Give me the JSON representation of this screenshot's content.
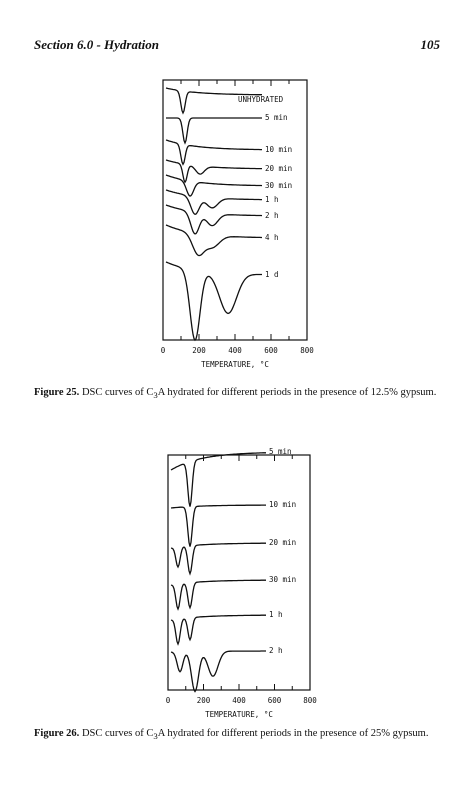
{
  "header": {
    "section": "Section 6.0 - Hydration",
    "page": "105"
  },
  "figures": [
    {
      "curve_labels": [
        "UNHYDRATED",
        "5 min",
        "10 min",
        "20 min",
        "30 min",
        "1 h",
        "2 h",
        "4 h",
        "1 d"
      ],
      "x_tick_labels": [
        "0",
        "200",
        "400",
        "600",
        "800"
      ],
      "x_axis_label": "TEMPERATURE, °C",
      "caption": {
        "label": "Figure 25.",
        "text_before": " DSC curves of C",
        "subscript": "3",
        "text_after": "A hydrated for different periods in the presence of 12.5% gypsum."
      }
    },
    {
      "curve_labels": [
        "5 min",
        "10 min",
        "20 min",
        "30 min",
        "1 h",
        "2 h"
      ],
      "x_tick_labels": [
        "0",
        "200",
        "400",
        "600",
        "800"
      ],
      "x_axis_label": "TEMPERATURE, °C",
      "caption": {
        "label": "Figure 26.",
        "text_before": " DSC curves of C",
        "subscript": "3",
        "text_after": "A hydrated for different periods in the presence of 25% gypsum."
      }
    }
  ]
}
